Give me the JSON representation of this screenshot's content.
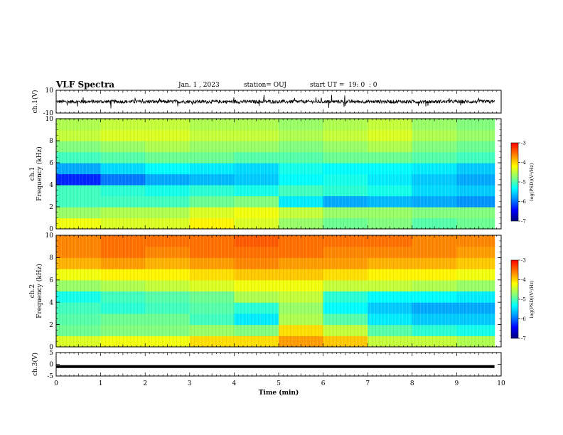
{
  "header": {
    "title": "VLF Spectra",
    "date": "Jan. 1 , 2023",
    "station": "station= OUJ",
    "start": "start UT =  19: 0  : 0"
  },
  "colors": {
    "colormap": [
      "#00007f",
      "#0000ff",
      "#00a0ff",
      "#00ffff",
      "#7fff7f",
      "#ffff00",
      "#ff8000",
      "#ff0000"
    ],
    "waveform": "#000000"
  },
  "chart_data": [
    {
      "type": "line",
      "panel": "ch1-waveform",
      "ylabel": "ch.1(V)",
      "ylim": [
        -10,
        10
      ],
      "yticks": [
        "10",
        "-10"
      ],
      "x_range_min": [
        0,
        9.85
      ],
      "baseline_v": 0,
      "noise_amplitude_v": 1.5,
      "spike_amplitude_v": 6
    },
    {
      "type": "heatmap",
      "panel": "ch1-spectrogram",
      "ylabel_line1": "ch.1",
      "ylabel_line2": "Frequency (kHz)",
      "ylim": [
        0,
        10
      ],
      "yticks": [
        "0",
        "2",
        "4",
        "6",
        "8",
        "10"
      ],
      "colorbar_label": "log(PSD)(V²/Hz)",
      "colorbar_ticks": [
        "-3",
        "-4",
        "-5",
        "-6",
        "-7"
      ],
      "clim": [
        -7,
        -3
      ],
      "time_min": [
        0,
        1,
        2,
        3,
        4,
        5,
        6,
        7,
        8,
        9
      ],
      "freq_khz": [
        0.5,
        1.5,
        2.5,
        3.5,
        4.5,
        5.5,
        6.5,
        7.5,
        8.5,
        9.5
      ],
      "log_psd": [
        [
          -4.2,
          -4.3,
          -4.3,
          -4.1,
          -4.3,
          -4.6,
          -4.8,
          -4.7,
          -4.9,
          -4.8
        ],
        [
          -4.6,
          -4.5,
          -4.5,
          -4.3,
          -4.2,
          -4.4,
          -4.6,
          -4.6,
          -4.7,
          -4.7
        ],
        [
          -5.0,
          -5.0,
          -5.0,
          -4.8,
          -4.7,
          -5.4,
          -5.8,
          -5.7,
          -5.8,
          -5.9
        ],
        [
          -5.0,
          -5.1,
          -5.2,
          -5.1,
          -5.2,
          -5.0,
          -5.1,
          -5.2,
          -5.5,
          -5.6
        ],
        [
          -6.3,
          -6.0,
          -5.8,
          -5.7,
          -5.6,
          -5.3,
          -5.2,
          -5.4,
          -5.6,
          -5.8
        ],
        [
          -5.8,
          -5.5,
          -5.3,
          -5.4,
          -5.5,
          -5.2,
          -5.3,
          -5.3,
          -5.4,
          -5.6
        ],
        [
          -5.0,
          -4.9,
          -4.8,
          -4.8,
          -4.9,
          -4.9,
          -4.8,
          -4.8,
          -4.9,
          -5.0
        ],
        [
          -4.7,
          -4.6,
          -4.5,
          -4.6,
          -4.6,
          -4.7,
          -4.6,
          -4.5,
          -4.7,
          -4.8
        ],
        [
          -4.4,
          -4.3,
          -4.3,
          -4.4,
          -4.4,
          -4.5,
          -4.4,
          -4.3,
          -4.5,
          -4.6
        ],
        [
          -4.5,
          -4.4,
          -4.4,
          -4.5,
          -4.5,
          -4.6,
          -4.5,
          -4.4,
          -4.6,
          -4.7
        ]
      ]
    },
    {
      "type": "heatmap",
      "panel": "ch2-spectrogram",
      "ylabel_line1": "ch.2",
      "ylabel_line2": "Frequency (kHz)",
      "ylim": [
        0,
        10
      ],
      "yticks": [
        "0",
        "2",
        "4",
        "6",
        "8",
        "10"
      ],
      "colorbar_label": "log(PSD)(V²/Hz)",
      "colorbar_ticks": [
        "-3",
        "-4",
        "-5",
        "-6",
        "-7"
      ],
      "clim": [
        -7,
        -3
      ],
      "time_min": [
        0,
        1,
        2,
        3,
        4,
        5,
        6,
        7,
        8,
        9
      ],
      "freq_khz": [
        0.5,
        1.5,
        2.5,
        3.5,
        4.5,
        5.5,
        6.5,
        7.5,
        8.5,
        9.5
      ],
      "log_psd": [
        [
          -4.3,
          -4.2,
          -4.2,
          -4.0,
          -4.0,
          -3.7,
          -3.9,
          -4.4,
          -4.4,
          -4.5
        ],
        [
          -4.8,
          -4.7,
          -4.7,
          -4.6,
          -4.7,
          -4.0,
          -4.4,
          -4.9,
          -5.1,
          -5.2
        ],
        [
          -4.9,
          -4.8,
          -4.8,
          -5.0,
          -5.4,
          -4.5,
          -4.9,
          -5.4,
          -5.6,
          -5.6
        ],
        [
          -5.0,
          -5.1,
          -5.0,
          -4.9,
          -5.1,
          -4.6,
          -5.3,
          -5.6,
          -5.8,
          -5.8
        ],
        [
          -5.2,
          -5.0,
          -4.9,
          -4.8,
          -4.5,
          -4.4,
          -5.1,
          -5.3,
          -5.3,
          -5.4
        ],
        [
          -4.6,
          -4.5,
          -4.4,
          -4.3,
          -4.2,
          -4.2,
          -4.4,
          -4.4,
          -4.5,
          -4.6
        ],
        [
          -4.2,
          -4.1,
          -4.1,
          -4.0,
          -3.9,
          -3.9,
          -4.0,
          -4.1,
          -4.1,
          -4.2
        ],
        [
          -3.8,
          -3.7,
          -3.8,
          -3.7,
          -3.6,
          -3.7,
          -3.7,
          -3.8,
          -3.8,
          -3.9
        ],
        [
          -3.6,
          -3.5,
          -3.6,
          -3.5,
          -3.5,
          -3.5,
          -3.6,
          -3.6,
          -3.6,
          -3.7
        ],
        [
          -3.6,
          -3.5,
          -3.5,
          -3.5,
          -3.4,
          -3.5,
          -3.5,
          -3.5,
          -3.6,
          -3.6
        ]
      ]
    },
    {
      "type": "line",
      "panel": "ch3-waveform",
      "ylabel": "ch.3(V)",
      "ylim": [
        -5,
        5
      ],
      "yticks": [
        "5",
        "0",
        "-5"
      ],
      "x_range_min": [
        0,
        9.85
      ],
      "baseline_v": -1
    }
  ],
  "xaxis": {
    "label": "Time (min)",
    "range": [
      0,
      10
    ],
    "ticks": [
      "0",
      "1",
      "2",
      "3",
      "4",
      "5",
      "6",
      "7",
      "8",
      "9",
      "10"
    ]
  }
}
